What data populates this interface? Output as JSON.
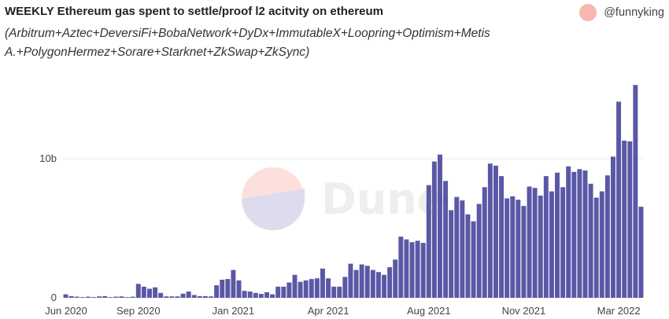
{
  "header": {
    "title": "WEEKLY Ethereum gas spent to settle/proof l2 acitvity on ethereum",
    "subtitle": "(Arbitrum+Aztec+DeversiFi+BobaNetwork+DyDx+ImmutableX+Loopring+Optimism+Metis A.+PolygonHermez+Sorare+Starknet+ZkSwap+ZkSync)",
    "author": "@funnyking"
  },
  "watermark": {
    "text": "Dune"
  },
  "colors": {
    "bar": "#5a58a6",
    "grid": "#e9e9e9",
    "avatar": "#f8b7b0"
  },
  "chart_data": {
    "type": "bar",
    "title": "WEEKLY Ethereum gas spent to settle/proof l2 acitvity on ethereum",
    "xlabel": "",
    "ylabel": "",
    "ylim": [
      0,
      15.5
    ],
    "y_unit": "b",
    "y_ticks": [
      {
        "value": 0,
        "label": "0"
      },
      {
        "value": 10,
        "label": "10b"
      }
    ],
    "x_ticks": [
      {
        "index": 0,
        "label": "Jun 2020"
      },
      {
        "index": 13,
        "label": "Sep 2020"
      },
      {
        "index": 30,
        "label": "Jan 2021"
      },
      {
        "index": 47,
        "label": "Apr 2021"
      },
      {
        "index": 65,
        "label": "Aug 2021"
      },
      {
        "index": 82,
        "label": "Nov 2021"
      },
      {
        "index": 99,
        "label": "Mar 2022"
      }
    ],
    "grid": true,
    "series": [
      {
        "values": [
          0.25,
          0.12,
          0.08,
          0.05,
          0.08,
          0.05,
          0.1,
          0.12,
          0.05,
          0.08,
          0.1,
          0.05,
          0.08,
          1.0,
          0.8,
          0.65,
          0.75,
          0.35,
          0.1,
          0.1,
          0.1,
          0.3,
          0.45,
          0.2,
          0.12,
          0.12,
          0.1,
          0.9,
          1.3,
          1.35,
          2.0,
          1.25,
          0.5,
          0.45,
          0.35,
          0.28,
          0.4,
          0.25,
          0.8,
          0.8,
          1.1,
          1.65,
          1.15,
          1.25,
          1.35,
          1.4,
          2.1,
          1.4,
          0.8,
          0.8,
          1.5,
          2.45,
          2.0,
          2.4,
          2.3,
          2.0,
          1.85,
          1.65,
          2.2,
          2.75,
          4.4,
          4.2,
          4.0,
          4.1,
          3.95,
          8.1,
          9.8,
          10.3,
          8.4,
          6.3,
          7.25,
          7.0,
          6.0,
          5.5,
          6.75,
          7.95,
          9.65,
          9.5,
          8.75,
          7.15,
          7.3,
          7.05,
          6.6,
          8.0,
          7.9,
          7.35,
          8.75,
          7.65,
          9.0,
          7.95,
          9.45,
          9.05,
          9.25,
          9.15,
          8.2,
          7.2,
          7.65,
          8.8,
          10.15,
          14.1,
          11.3,
          11.25,
          15.3,
          6.55
        ]
      }
    ]
  }
}
